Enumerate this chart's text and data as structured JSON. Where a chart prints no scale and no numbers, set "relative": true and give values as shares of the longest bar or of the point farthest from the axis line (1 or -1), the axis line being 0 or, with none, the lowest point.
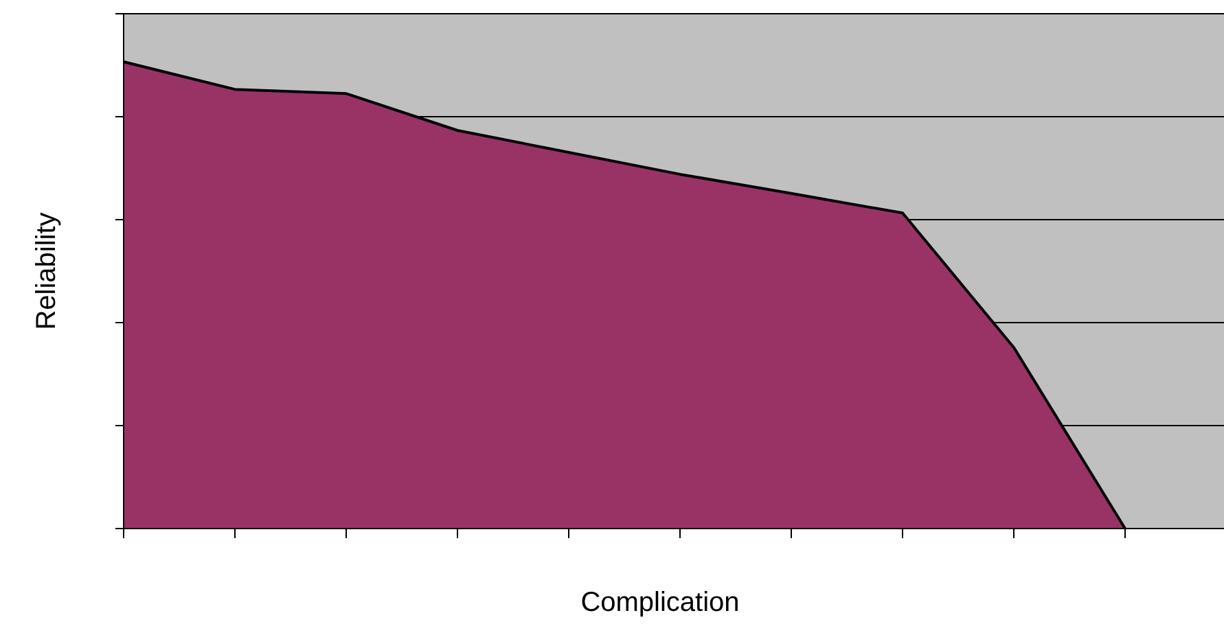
{
  "chart_data": {
    "type": "area",
    "xlabel": "Complication",
    "ylabel": "Reliability",
    "relative": true,
    "grid": "y",
    "color": "#993366",
    "categories": [
      null,
      null,
      null,
      null,
      null,
      null,
      null,
      null,
      null,
      null
    ],
    "values": [
      1,
      0.941,
      0.932,
      0.853,
      0.806,
      0.759,
      0.718,
      0.676,
      0.388,
      0
    ]
  }
}
